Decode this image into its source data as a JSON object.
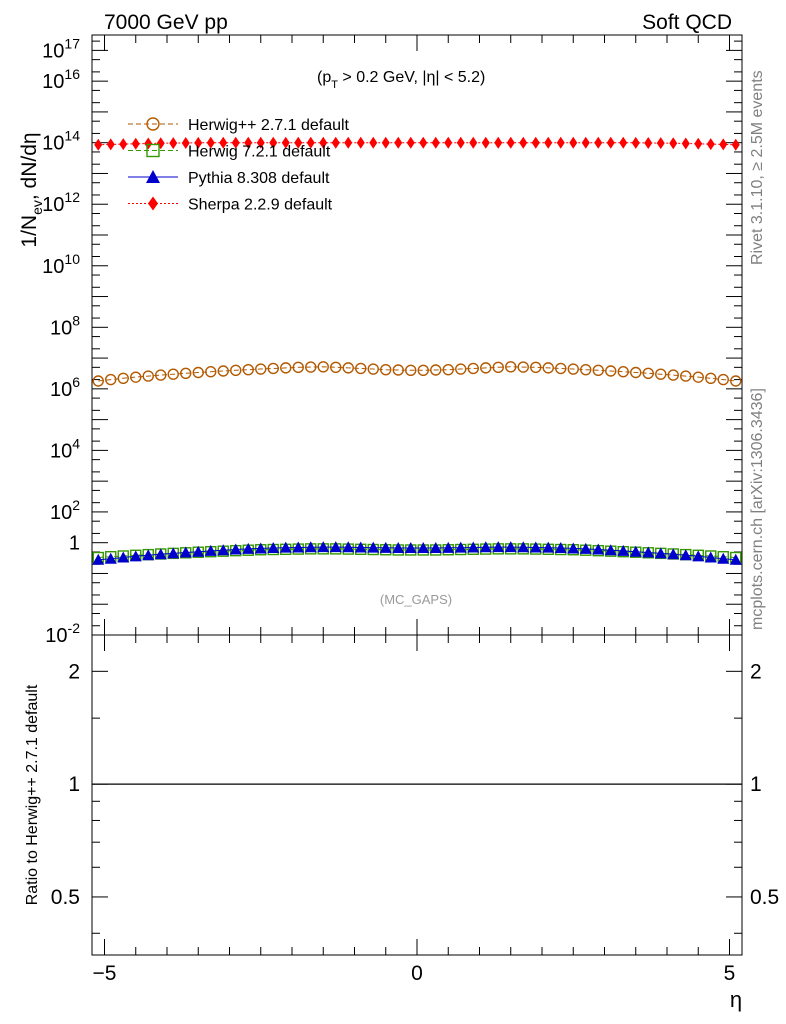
{
  "header": {
    "left_title": "7000 GeV pp",
    "right_title": "Soft QCD"
  },
  "side_text": {
    "rivet": "Rivet 3.1.10, ≥ 2.5M events",
    "source": "mcplots.cern.ch [arXiv:1306.3436]"
  },
  "annotation": {
    "cut_prefix": "(p",
    "cut_sub": "T",
    "cut_suffix": " > 0.2 GeV, |η| < 5.2)",
    "watermark": "(MC_GAPS)"
  },
  "chart_data": {
    "type": "line",
    "x": [
      -5.1,
      -4.9,
      -4.7,
      -4.5,
      -4.3,
      -4.1,
      -3.9,
      -3.7,
      -3.5,
      -3.3,
      -3.1,
      -2.9,
      -2.7,
      -2.5,
      -2.3,
      -2.1,
      -1.9,
      -1.7,
      -1.5,
      -1.3,
      -1.1,
      -0.9,
      -0.7,
      -0.5,
      -0.3,
      -0.1,
      0.1,
      0.3,
      0.5,
      0.7,
      0.9,
      1.1,
      1.3,
      1.5,
      1.7,
      1.9,
      2.1,
      2.3,
      2.5,
      2.7,
      2.9,
      3.1,
      3.3,
      3.5,
      3.7,
      3.9,
      4.1,
      4.3,
      4.5,
      4.7,
      4.9,
      5.1
    ],
    "xlim": [
      -5.2,
      5.2
    ],
    "xlabel": "η",
    "x_ticks": [
      -5,
      0,
      5
    ],
    "x_tick_labels": [
      "−5",
      "0",
      "5"
    ],
    "main_panel": {
      "ylabel": "1/N_ev, dN/dη",
      "yscale": "log",
      "ylim_log10": [
        -2,
        17.5
      ],
      "y_tick_exponents": [
        -2,
        1,
        2,
        4,
        6,
        8,
        10,
        12,
        14,
        16,
        17
      ],
      "y_tick_labels": [
        "10^-2",
        "1",
        "10^2",
        "10^4",
        "10^6",
        "10^8",
        "10^10",
        "10^12",
        "10^14",
        "10^16",
        "10^17"
      ],
      "legend_position": "top-left",
      "series": [
        {
          "name": "Herwig++ 2.7.1 default",
          "color": "#b35900",
          "line_style": "dashed",
          "marker": "open-circle",
          "values": [
            1800000.0,
            2000000.0,
            2200000.0,
            2400000.0,
            2600000.0,
            2800000.0,
            3000000.0,
            3200000.0,
            3400000.0,
            3600000.0,
            3800000.0,
            4000000.0,
            4200000.0,
            4400000.0,
            4600000.0,
            4800000.0,
            5000000.0,
            5100000.0,
            5200000.0,
            5000000.0,
            4800000.0,
            4600000.0,
            4400000.0,
            4200000.0,
            4100000.0,
            4000000.0,
            4000000.0,
            4100000.0,
            4200000.0,
            4400000.0,
            4600000.0,
            4800000.0,
            5000000.0,
            5200000.0,
            5100000.0,
            5000000.0,
            4800000.0,
            4600000.0,
            4400000.0,
            4200000.0,
            4000000.0,
            3800000.0,
            3600000.0,
            3400000.0,
            3200000.0,
            3000000.0,
            2800000.0,
            2600000.0,
            2400000.0,
            2200000.0,
            2000000.0,
            1800000.0
          ]
        },
        {
          "name": "Herwig 7.2.1 default",
          "color": "#339900",
          "line_style": "dashed",
          "marker": "open-square",
          "values": [
            3.3,
            3.5,
            3.7,
            3.9,
            4.1,
            4.3,
            4.5,
            4.7,
            4.9,
            5.1,
            5.3,
            5.5,
            5.7,
            5.9,
            6.0,
            6.1,
            6.2,
            6.3,
            6.3,
            6.3,
            6.2,
            6.1,
            6.0,
            5.9,
            5.8,
            5.8,
            5.8,
            5.8,
            5.9,
            6.0,
            6.1,
            6.2,
            6.3,
            6.3,
            6.3,
            6.2,
            6.1,
            6.0,
            5.9,
            5.7,
            5.5,
            5.3,
            5.1,
            4.9,
            4.7,
            4.5,
            4.3,
            4.1,
            3.9,
            3.7,
            3.5,
            3.3
          ]
        },
        {
          "name": "Pythia 8.308 default",
          "color": "#0000cc",
          "line_style": "solid",
          "marker": "filled-triangle",
          "values": [
            2.8,
            3.0,
            3.3,
            3.6,
            3.9,
            4.2,
            4.5,
            4.8,
            5.1,
            5.4,
            5.7,
            6.0,
            6.3,
            6.5,
            6.7,
            6.9,
            7.0,
            7.1,
            7.2,
            7.2,
            7.1,
            7.0,
            6.9,
            6.8,
            6.7,
            6.7,
            6.7,
            6.7,
            6.8,
            6.9,
            7.0,
            7.1,
            7.2,
            7.2,
            7.1,
            7.0,
            6.9,
            6.7,
            6.5,
            6.3,
            6.0,
            5.7,
            5.4,
            5.1,
            4.8,
            4.5,
            4.2,
            3.9,
            3.6,
            3.3,
            3.0,
            2.8
          ]
        },
        {
          "name": "Sherpa 2.2.9 default",
          "color": "#ff0000",
          "line_style": "dotted",
          "marker": "filled-diamond",
          "values": [
            86000000000000.0,
            88000000000000.0,
            90000000000000.0,
            92000000000000.0,
            94000000000000.0,
            96000000000000.0,
            97000000000000.0,
            98000000000000.0,
            99000000000000.0,
            100000000000000.0,
            100000000000000.0,
            100000000000000.0,
            100000000000000.0,
            100000000000000.0,
            100000000000000.0,
            100000000000000.0,
            100000000000000.0,
            100000000000000.0,
            100000000000000.0,
            100000000000000.0,
            100000000000000.0,
            100000000000000.0,
            100000000000000.0,
            100000000000000.0,
            100000000000000.0,
            100000000000000.0,
            100000000000000.0,
            100000000000000.0,
            100000000000000.0,
            100000000000000.0,
            100000000000000.0,
            100000000000000.0,
            100000000000000.0,
            100000000000000.0,
            100000000000000.0,
            100000000000000.0,
            100000000000000.0,
            100000000000000.0,
            100000000000000.0,
            100000000000000.0,
            100000000000000.0,
            100000000000000.0,
            100000000000000.0,
            99000000000000.0,
            98000000000000.0,
            97000000000000.0,
            96000000000000.0,
            94000000000000.0,
            92000000000000.0,
            90000000000000.0,
            88000000000000.0,
            86000000000000.0
          ]
        }
      ]
    },
    "ratio_panel": {
      "ylabel": "Ratio to Herwig++ 2.7.1 default",
      "yscale": "log",
      "ylim": [
        0.35,
        2.5
      ],
      "y_ticks": [
        0.5,
        1,
        2
      ],
      "y_tick_labels": [
        "0.5",
        "1",
        "2"
      ],
      "reference_line": 1
    }
  }
}
